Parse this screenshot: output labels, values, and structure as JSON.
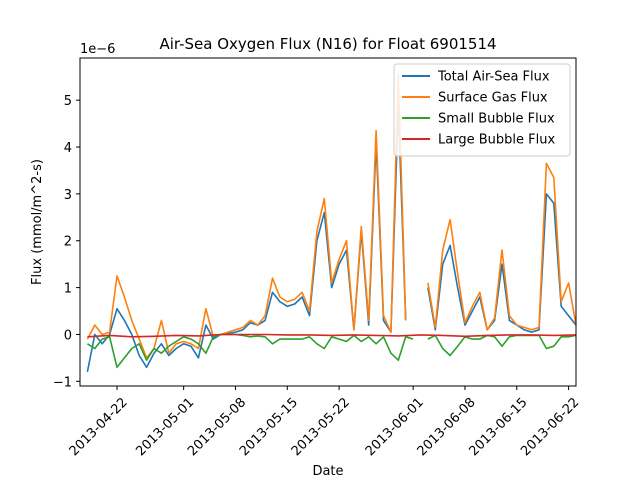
{
  "chart_data": {
    "type": "line",
    "title": "Air-Sea Oxygen Flux (N16) for Float 6901514",
    "xlabel": "Date",
    "ylabel": "Flux (mmol/m^2-s)",
    "y_scale_label": "1e−6",
    "y_multiplier": 1e-06,
    "ylim": [
      -1.1,
      5.9
    ],
    "xlim": [
      "2013-04-17",
      "2013-06-23"
    ],
    "x_ticks": [
      "2013-04-22",
      "2013-05-01",
      "2013-05-08",
      "2013-05-15",
      "2013-05-22",
      "2013-06-01",
      "2013-06-08",
      "2013-06-15",
      "2013-06-22"
    ],
    "y_ticks": [
      -1,
      0,
      1,
      2,
      3,
      4,
      5
    ],
    "y_tick_labels": [
      "−1",
      "0",
      "1",
      "2",
      "3",
      "4",
      "5"
    ],
    "grid": false,
    "legend_position": "top-right",
    "series": [
      {
        "name": "Total Air-Sea Flux",
        "color": "#1f77b4",
        "points": [
          [
            "2013-04-18",
            -0.8
          ],
          [
            "2013-04-19",
            0.0
          ],
          [
            "2013-04-20",
            -0.2
          ],
          [
            "2013-04-21",
            0.0
          ],
          [
            "2013-04-22",
            0.55
          ],
          [
            "2013-04-23",
            0.3
          ],
          [
            "2013-04-24",
            0.0
          ],
          [
            "2013-04-25",
            -0.45
          ],
          [
            "2013-04-26",
            -0.7
          ],
          [
            "2013-04-27",
            -0.4
          ],
          [
            "2013-04-28",
            -0.2
          ],
          [
            "2013-04-29",
            -0.45
          ],
          [
            "2013-04-30",
            -0.3
          ],
          [
            "2013-05-01",
            -0.2
          ],
          [
            "2013-05-02",
            -0.25
          ],
          [
            "2013-05-03",
            -0.5
          ],
          [
            "2013-05-04",
            0.2
          ],
          [
            "2013-05-05",
            -0.1
          ],
          [
            "2013-05-06",
            0.0
          ],
          [
            "2013-05-07",
            0.02
          ],
          [
            "2013-05-08",
            0.05
          ],
          [
            "2013-05-09",
            0.1
          ],
          [
            "2013-05-10",
            0.25
          ],
          [
            "2013-05-11",
            0.2
          ],
          [
            "2013-05-12",
            0.3
          ],
          [
            "2013-05-13",
            0.9
          ],
          [
            "2013-05-14",
            0.7
          ],
          [
            "2013-05-15",
            0.6
          ],
          [
            "2013-05-16",
            0.65
          ],
          [
            "2013-05-17",
            0.8
          ],
          [
            "2013-05-18",
            0.4
          ],
          [
            "2013-05-19",
            2.0
          ],
          [
            "2013-05-20",
            2.6
          ],
          [
            "2013-05-21",
            1.0
          ],
          [
            "2013-05-22",
            1.5
          ],
          [
            "2013-05-23",
            1.8
          ],
          [
            "2013-05-24",
            0.1
          ],
          [
            "2013-05-25",
            2.2
          ],
          [
            "2013-05-26",
            0.2
          ],
          [
            "2013-05-27",
            4.1
          ],
          [
            "2013-05-28",
            0.3
          ],
          [
            "2013-05-29",
            0.05
          ],
          [
            "2013-05-30",
            4.9
          ],
          [
            "2013-05-31",
            0.3
          ],
          [
            "2013-06-03",
            1.0
          ],
          [
            "2013-06-04",
            0.1
          ],
          [
            "2013-06-05",
            1.5
          ],
          [
            "2013-06-06",
            1.9
          ],
          [
            "2013-06-07",
            1.0
          ],
          [
            "2013-06-08",
            0.2
          ],
          [
            "2013-06-09",
            0.5
          ],
          [
            "2013-06-10",
            0.8
          ],
          [
            "2013-06-11",
            0.1
          ],
          [
            "2013-06-12",
            0.3
          ],
          [
            "2013-06-13",
            1.5
          ],
          [
            "2013-06-14",
            0.3
          ],
          [
            "2013-06-15",
            0.2
          ],
          [
            "2013-06-16",
            0.1
          ],
          [
            "2013-06-17",
            0.05
          ],
          [
            "2013-06-18",
            0.1
          ],
          [
            "2013-06-19",
            3.0
          ],
          [
            "2013-06-20",
            2.8
          ],
          [
            "2013-06-21",
            0.6
          ],
          [
            "2013-06-22",
            0.4
          ],
          [
            "2013-06-23",
            0.2
          ]
        ]
      },
      {
        "name": "Surface Gas Flux",
        "color": "#ff7f0e",
        "points": [
          [
            "2013-04-18",
            -0.1
          ],
          [
            "2013-04-19",
            0.2
          ],
          [
            "2013-04-20",
            0.0
          ],
          [
            "2013-04-21",
            0.05
          ],
          [
            "2013-04-22",
            1.25
          ],
          [
            "2013-04-23",
            0.8
          ],
          [
            "2013-04-24",
            0.3
          ],
          [
            "2013-04-25",
            -0.1
          ],
          [
            "2013-04-26",
            -0.5
          ],
          [
            "2013-04-27",
            -0.3
          ],
          [
            "2013-04-28",
            0.3
          ],
          [
            "2013-04-29",
            -0.4
          ],
          [
            "2013-04-30",
            -0.2
          ],
          [
            "2013-05-01",
            -0.15
          ],
          [
            "2013-05-02",
            -0.2
          ],
          [
            "2013-05-03",
            -0.3
          ],
          [
            "2013-05-04",
            0.55
          ],
          [
            "2013-05-05",
            -0.05
          ],
          [
            "2013-05-06",
            0.0
          ],
          [
            "2013-05-07",
            0.05
          ],
          [
            "2013-05-08",
            0.1
          ],
          [
            "2013-05-09",
            0.15
          ],
          [
            "2013-05-10",
            0.3
          ],
          [
            "2013-05-11",
            0.2
          ],
          [
            "2013-05-12",
            0.4
          ],
          [
            "2013-05-13",
            1.2
          ],
          [
            "2013-05-14",
            0.8
          ],
          [
            "2013-05-15",
            0.7
          ],
          [
            "2013-05-16",
            0.75
          ],
          [
            "2013-05-17",
            0.9
          ],
          [
            "2013-05-18",
            0.5
          ],
          [
            "2013-05-19",
            2.2
          ],
          [
            "2013-05-20",
            2.9
          ],
          [
            "2013-05-21",
            1.1
          ],
          [
            "2013-05-22",
            1.6
          ],
          [
            "2013-05-23",
            2.0
          ],
          [
            "2013-05-24",
            0.1
          ],
          [
            "2013-05-25",
            2.3
          ],
          [
            "2013-05-26",
            0.3
          ],
          [
            "2013-05-27",
            4.35
          ],
          [
            "2013-05-28",
            0.4
          ],
          [
            "2013-05-29",
            0.05
          ],
          [
            "2013-05-30",
            5.55
          ],
          [
            "2013-05-31",
            0.3
          ],
          [
            "2013-06-03",
            1.1
          ],
          [
            "2013-06-04",
            0.15
          ],
          [
            "2013-06-05",
            1.8
          ],
          [
            "2013-06-06",
            2.45
          ],
          [
            "2013-06-07",
            1.3
          ],
          [
            "2013-06-08",
            0.25
          ],
          [
            "2013-06-09",
            0.6
          ],
          [
            "2013-06-10",
            0.9
          ],
          [
            "2013-06-11",
            0.1
          ],
          [
            "2013-06-12",
            0.35
          ],
          [
            "2013-06-13",
            1.8
          ],
          [
            "2013-06-14",
            0.4
          ],
          [
            "2013-06-15",
            0.2
          ],
          [
            "2013-06-16",
            0.15
          ],
          [
            "2013-06-17",
            0.1
          ],
          [
            "2013-06-18",
            0.15
          ],
          [
            "2013-06-19",
            3.65
          ],
          [
            "2013-06-20",
            3.35
          ],
          [
            "2013-06-21",
            0.7
          ],
          [
            "2013-06-22",
            1.1
          ],
          [
            "2013-06-23",
            0.2
          ]
        ]
      },
      {
        "name": "Small Bubble Flux",
        "color": "#2ca02c",
        "points": [
          [
            "2013-04-18",
            -0.2
          ],
          [
            "2013-04-19",
            -0.3
          ],
          [
            "2013-04-20",
            -0.1
          ],
          [
            "2013-04-21",
            -0.05
          ],
          [
            "2013-04-22",
            -0.7
          ],
          [
            "2013-04-23",
            -0.5
          ],
          [
            "2013-04-24",
            -0.3
          ],
          [
            "2013-04-25",
            -0.2
          ],
          [
            "2013-04-26",
            -0.55
          ],
          [
            "2013-04-27",
            -0.3
          ],
          [
            "2013-04-28",
            -0.4
          ],
          [
            "2013-04-29",
            -0.25
          ],
          [
            "2013-04-30",
            -0.15
          ],
          [
            "2013-05-01",
            -0.05
          ],
          [
            "2013-05-02",
            -0.1
          ],
          [
            "2013-05-03",
            -0.2
          ],
          [
            "2013-05-04",
            -0.4
          ],
          [
            "2013-05-05",
            -0.05
          ],
          [
            "2013-05-06",
            0.0
          ],
          [
            "2013-05-07",
            0.0
          ],
          [
            "2013-05-08",
            0.0
          ],
          [
            "2013-05-09",
            -0.02
          ],
          [
            "2013-05-10",
            -0.05
          ],
          [
            "2013-05-11",
            -0.03
          ],
          [
            "2013-05-12",
            -0.05
          ],
          [
            "2013-05-13",
            -0.2
          ],
          [
            "2013-05-14",
            -0.1
          ],
          [
            "2013-05-15",
            -0.1
          ],
          [
            "2013-05-16",
            -0.1
          ],
          [
            "2013-05-17",
            -0.1
          ],
          [
            "2013-05-18",
            -0.05
          ],
          [
            "2013-05-19",
            -0.2
          ],
          [
            "2013-05-20",
            -0.3
          ],
          [
            "2013-05-21",
            -0.05
          ],
          [
            "2013-05-22",
            -0.1
          ],
          [
            "2013-05-23",
            -0.15
          ],
          [
            "2013-05-24",
            -0.02
          ],
          [
            "2013-05-25",
            -0.15
          ],
          [
            "2013-05-26",
            -0.05
          ],
          [
            "2013-05-27",
            -0.2
          ],
          [
            "2013-05-28",
            -0.05
          ],
          [
            "2013-05-29",
            -0.4
          ],
          [
            "2013-05-30",
            -0.55
          ],
          [
            "2013-05-31",
            -0.05
          ],
          [
            "2013-06-01",
            -0.1
          ],
          [
            "2013-06-03",
            -0.1
          ],
          [
            "2013-06-04",
            -0.02
          ],
          [
            "2013-06-05",
            -0.3
          ],
          [
            "2013-06-06",
            -0.45
          ],
          [
            "2013-06-07",
            -0.25
          ],
          [
            "2013-06-08",
            -0.05
          ],
          [
            "2013-06-09",
            -0.1
          ],
          [
            "2013-06-10",
            -0.1
          ],
          [
            "2013-06-11",
            -0.02
          ],
          [
            "2013-06-12",
            -0.05
          ],
          [
            "2013-06-13",
            -0.25
          ],
          [
            "2013-06-14",
            -0.05
          ],
          [
            "2013-06-15",
            -0.02
          ],
          [
            "2013-06-16",
            -0.02
          ],
          [
            "2013-06-17",
            -0.02
          ],
          [
            "2013-06-18",
            -0.02
          ],
          [
            "2013-06-19",
            -0.3
          ],
          [
            "2013-06-20",
            -0.25
          ],
          [
            "2013-06-21",
            -0.05
          ],
          [
            "2013-06-22",
            -0.05
          ],
          [
            "2013-06-23",
            -0.02
          ]
        ]
      },
      {
        "name": "Large Bubble Flux",
        "color": "#d62728",
        "points": [
          [
            "2013-04-18",
            -0.05
          ],
          [
            "2013-04-21",
            -0.02
          ],
          [
            "2013-04-24",
            -0.05
          ],
          [
            "2013-04-27",
            -0.04
          ],
          [
            "2013-04-30",
            -0.02
          ],
          [
            "2013-05-03",
            -0.03
          ],
          [
            "2013-05-06",
            0.0
          ],
          [
            "2013-05-09",
            0.0
          ],
          [
            "2013-05-12",
            0.0
          ],
          [
            "2013-05-15",
            -0.01
          ],
          [
            "2013-05-18",
            -0.01
          ],
          [
            "2013-05-21",
            -0.02
          ],
          [
            "2013-05-24",
            -0.01
          ],
          [
            "2013-05-27",
            -0.02
          ],
          [
            "2013-05-30",
            -0.03
          ],
          [
            "2013-06-02",
            -0.01
          ],
          [
            "2013-06-05",
            -0.02
          ],
          [
            "2013-06-08",
            -0.04
          ],
          [
            "2013-06-11",
            -0.02
          ],
          [
            "2013-06-14",
            -0.01
          ],
          [
            "2013-06-17",
            -0.01
          ],
          [
            "2013-06-20",
            -0.02
          ],
          [
            "2013-06-23",
            -0.01
          ]
        ]
      }
    ]
  }
}
